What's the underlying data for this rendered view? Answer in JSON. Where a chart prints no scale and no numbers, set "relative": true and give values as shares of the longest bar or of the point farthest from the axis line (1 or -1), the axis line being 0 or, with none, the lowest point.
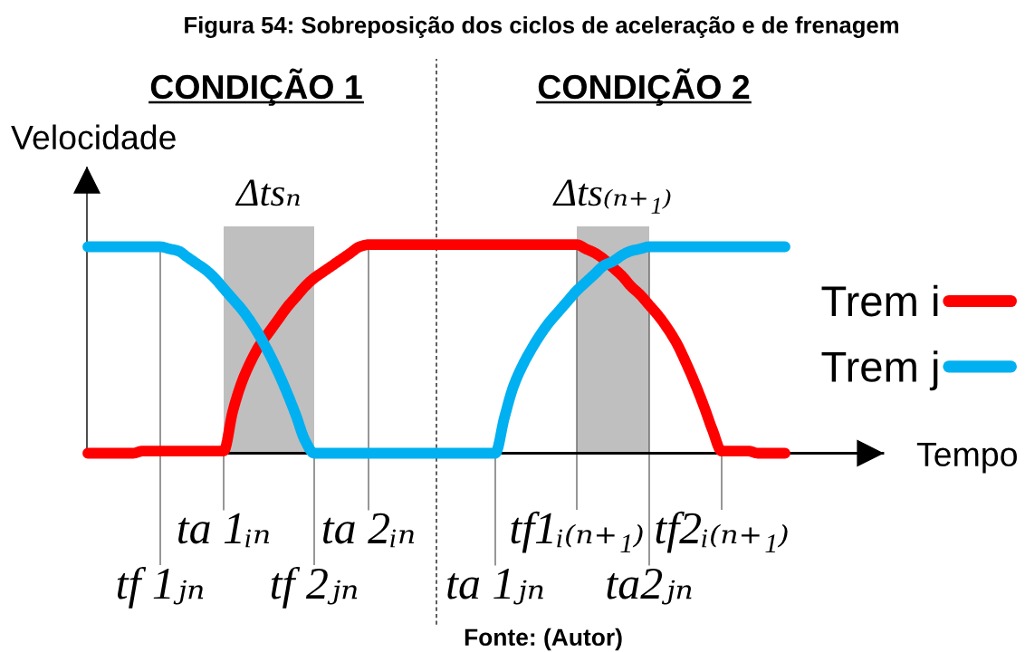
{
  "chart_data": {
    "type": "line",
    "title": "Figura 54: Sobreposição dos ciclos de aceleração e de frenagem",
    "xlabel": "Tempo",
    "ylabel": "Velocidade",
    "relative": true,
    "tick_labels": "x",
    "legend": "right",
    "categories": [
      null,
      null,
      null,
      null,
      null,
      null,
      null,
      null,
      "tf 1ⱼₙ",
      null,
      null,
      null,
      null,
      null,
      null,
      "ta 1ᵢₙ",
      null,
      null,
      null,
      null,
      null,
      null,
      null,
      null,
      null,
      "tf 2ⱼₙ",
      null,
      null,
      null,
      null,
      null,
      "ta 2ᵢₙ",
      null,
      null,
      null,
      null,
      null,
      null,
      null,
      null,
      null,
      null,
      null,
      null,
      null,
      "ta 1ⱼₙ",
      null,
      null,
      null,
      null,
      null,
      null,
      null,
      null,
      "tf1ᵢ₍ₙ₊₁₎",
      null,
      null,
      null,
      null,
      null,
      null,
      null,
      "ta2ⱼₙ",
      null,
      null,
      null,
      null,
      null,
      null,
      null,
      "tf2ᵢ₍ₙ₊₁₎",
      null,
      null,
      null,
      null,
      null,
      null,
      null
    ],
    "series": [
      {
        "name": "Trem i",
        "color": "#ff0000",
        "values": [
          0,
          0,
          0,
          0,
          0,
          0,
          0.01,
          0.01,
          0.01,
          0.01,
          0.01,
          0.01,
          0.01,
          0.01,
          0.01,
          0.01,
          0.2,
          0.34,
          0.44,
          0.52,
          0.58,
          0.64,
          0.7,
          0.75,
          0.8,
          0.84,
          0.87,
          0.9,
          0.93,
          0.96,
          0.99,
          1,
          1,
          1,
          1,
          1,
          1,
          1,
          1,
          1,
          1,
          1,
          1,
          1,
          1,
          1,
          1,
          1,
          1,
          1,
          1,
          1,
          1,
          1,
          1,
          0.98,
          0.96,
          0.93,
          0.89,
          0.85,
          0.8,
          0.76,
          0.71,
          0.66,
          0.6,
          0.53,
          0.44,
          0.34,
          0.23,
          0.11,
          0.01,
          0.01,
          0.01,
          0.01,
          0,
          0,
          0,
          0
        ]
      },
      {
        "name": "Trem j",
        "color": "#00b0f0",
        "values": [
          0.99,
          0.99,
          0.99,
          0.99,
          0.99,
          0.99,
          0.99,
          0.99,
          0.99,
          0.98,
          0.97,
          0.94,
          0.91,
          0.88,
          0.84,
          0.79,
          0.74,
          0.69,
          0.63,
          0.56,
          0.48,
          0.39,
          0.29,
          0.18,
          0.06,
          0,
          0,
          0,
          0,
          0,
          0,
          0,
          0,
          0,
          0,
          0,
          0,
          0,
          0,
          0,
          0,
          0,
          0,
          0,
          0,
          0,
          0.17,
          0.32,
          0.42,
          0.5,
          0.57,
          0.63,
          0.68,
          0.73,
          0.78,
          0.82,
          0.86,
          0.9,
          0.92,
          0.95,
          0.97,
          0.98,
          0.99,
          0.99,
          0.99,
          0.99,
          0.99,
          0.99,
          0.99,
          0.99,
          0.99,
          0.99,
          0.99,
          0.99,
          0.99,
          0.99,
          0.99,
          0.99
        ]
      }
    ],
    "bands": [
      {
        "axis": "x",
        "from": "ta 1ᵢₙ",
        "to": "tf 2ⱼₙ",
        "label": "Δtsₙ",
        "color": "#bfbfbf"
      },
      {
        "axis": "x",
        "from": "tf1ᵢ₍ₙ₊₁₎",
        "to": "ta2ⱼₙ",
        "label": "Δts₍ₙ₊₁₎",
        "color": "#bfbfbf"
      }
    ],
    "annotations": [
      "CONDIÇÃO 1",
      "CONDIÇÃO 2",
      "Fonte: (Autor)"
    ]
  }
}
